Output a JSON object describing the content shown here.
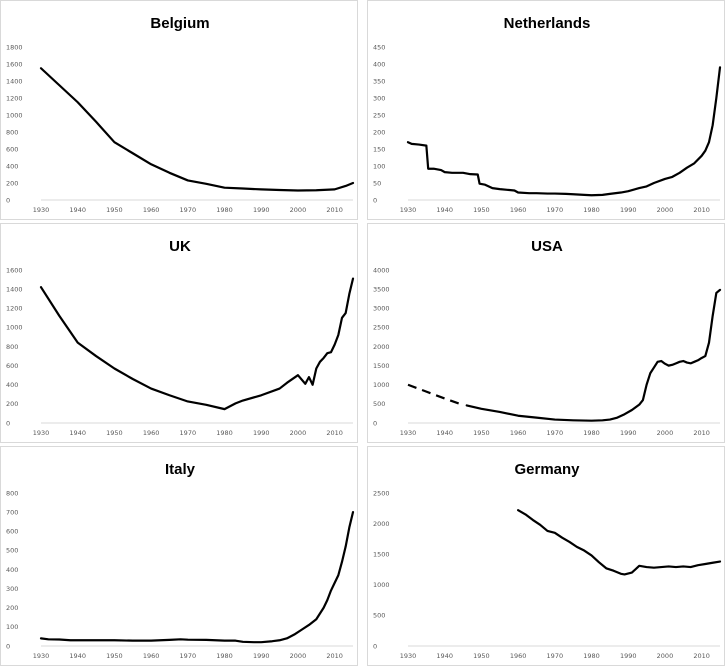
{
  "chart_data": [
    {
      "type": "line",
      "title": "Belgium",
      "xlabel": "",
      "ylabel": "",
      "xlim": [
        1930,
        2015
      ],
      "ylim": [
        0,
        1800
      ],
      "x_ticks": [
        "1930",
        "1940",
        "1950",
        "1960",
        "1970",
        "1980",
        "1990",
        "2000",
        "2010"
      ],
      "y_ticks": [
        "0",
        "200",
        "400",
        "600",
        "800",
        "1000",
        "1200",
        "1400",
        "1600",
        "1800"
      ],
      "grid": false,
      "series": [
        {
          "style": "solid",
          "color": "#000000",
          "points": [
            [
              1930,
              1550
            ],
            [
              1935,
              1350
            ],
            [
              1940,
              1150
            ],
            [
              1945,
              920
            ],
            [
              1950,
              680
            ],
            [
              1955,
              550
            ],
            [
              1960,
              420
            ],
            [
              1965,
              320
            ],
            [
              1970,
              230
            ],
            [
              1975,
              190
            ],
            [
              1980,
              145
            ],
            [
              1985,
              135
            ],
            [
              1990,
              125
            ],
            [
              1995,
              118
            ],
            [
              2000,
              112
            ],
            [
              2005,
              115
            ],
            [
              2010,
              125
            ],
            [
              2013,
              165
            ],
            [
              2015,
              200
            ]
          ]
        }
      ]
    },
    {
      "type": "line",
      "title": "Netherlands",
      "xlabel": "",
      "ylabel": "",
      "xlim": [
        1930,
        2015
      ],
      "ylim": [
        0,
        450
      ],
      "x_ticks": [
        "1930",
        "1940",
        "1950",
        "1960",
        "1970",
        "1980",
        "1990",
        "2000",
        "2010"
      ],
      "y_ticks": [
        "0",
        "50",
        "100",
        "150",
        "200",
        "250",
        "300",
        "350",
        "400",
        "450"
      ],
      "grid": false,
      "series": [
        {
          "style": "solid",
          "color": "#000000",
          "points": [
            [
              1930,
              170
            ],
            [
              1931,
              165
            ],
            [
              1933,
              163
            ],
            [
              1935,
              160
            ],
            [
              1935.5,
              92
            ],
            [
              1937,
              92
            ],
            [
              1939,
              88
            ],
            [
              1940,
              82
            ],
            [
              1942,
              80
            ],
            [
              1945,
              80
            ],
            [
              1947,
              76
            ],
            [
              1949,
              75
            ],
            [
              1949.5,
              48
            ],
            [
              1951,
              45
            ],
            [
              1953,
              35
            ],
            [
              1955,
              32
            ],
            [
              1957,
              30
            ],
            [
              1959,
              28
            ],
            [
              1960,
              22
            ],
            [
              1963,
              20
            ],
            [
              1965,
              20
            ],
            [
              1968,
              19
            ],
            [
              1970,
              19
            ],
            [
              1973,
              18
            ],
            [
              1975,
              17
            ],
            [
              1978,
              15
            ],
            [
              1980,
              14
            ],
            [
              1983,
              15
            ],
            [
              1985,
              18
            ],
            [
              1988,
              22
            ],
            [
              1990,
              26
            ],
            [
              1993,
              35
            ],
            [
              1995,
              40
            ],
            [
              1997,
              50
            ],
            [
              2000,
              62
            ],
            [
              2002,
              68
            ],
            [
              2004,
              80
            ],
            [
              2006,
              95
            ],
            [
              2008,
              108
            ],
            [
              2010,
              130
            ],
            [
              2011,
              145
            ],
            [
              2012,
              170
            ],
            [
              2013,
              220
            ],
            [
              2014,
              300
            ],
            [
              2015,
              390
            ]
          ]
        }
      ]
    },
    {
      "type": "line",
      "title": "UK",
      "xlabel": "",
      "ylabel": "",
      "xlim": [
        1930,
        2015
      ],
      "ylim": [
        0,
        1600
      ],
      "x_ticks": [
        "1930",
        "1940",
        "1950",
        "1960",
        "1970",
        "1980",
        "1990",
        "2000",
        "2010"
      ],
      "y_ticks": [
        "0",
        "200",
        "400",
        "600",
        "800",
        "1000",
        "1200",
        "1400",
        "1600"
      ],
      "grid": false,
      "series": [
        {
          "style": "solid",
          "color": "#000000",
          "points": [
            [
              1930,
              1420
            ],
            [
              1935,
              1120
            ],
            [
              1940,
              840
            ],
            [
              1945,
              700
            ],
            [
              1950,
              570
            ],
            [
              1955,
              460
            ],
            [
              1960,
              360
            ],
            [
              1965,
              290
            ],
            [
              1970,
              225
            ],
            [
              1975,
              190
            ],
            [
              1980,
              145
            ],
            [
              1983,
              205
            ],
            [
              1985,
              235
            ],
            [
              1990,
              290
            ],
            [
              1995,
              360
            ],
            [
              1997,
              420
            ],
            [
              2000,
              500
            ],
            [
              2002,
              410
            ],
            [
              2003,
              480
            ],
            [
              2004,
              400
            ],
            [
              2005,
              570
            ],
            [
              2006,
              640
            ],
            [
              2007,
              680
            ],
            [
              2008,
              730
            ],
            [
              2009,
              740
            ],
            [
              2010,
              820
            ],
            [
              2011,
              920
            ],
            [
              2012,
              1100
            ],
            [
              2013,
              1150
            ],
            [
              2014,
              1350
            ],
            [
              2015,
              1510
            ]
          ]
        }
      ]
    },
    {
      "type": "line",
      "title": "USA",
      "xlabel": "",
      "ylabel": "",
      "xlim": [
        1930,
        2015
      ],
      "ylim": [
        0,
        4000
      ],
      "x_ticks": [
        "1930",
        "1940",
        "1950",
        "1960",
        "1970",
        "1980",
        "1990",
        "2000",
        "2010"
      ],
      "y_ticks": [
        "0",
        "500",
        "1000",
        "1500",
        "2000",
        "2500",
        "3000",
        "3500",
        "4000"
      ],
      "grid": false,
      "series": [
        {
          "style": "dashed",
          "color": "#000000",
          "points": [
            [
              1930,
              1000
            ],
            [
              1935,
              820
            ],
            [
              1940,
              640
            ],
            [
              1945,
              470
            ]
          ]
        },
        {
          "style": "solid",
          "color": "#000000",
          "points": [
            [
              1946,
              460
            ],
            [
              1950,
              370
            ],
            [
              1955,
              290
            ],
            [
              1960,
              190
            ],
            [
              1965,
              140
            ],
            [
              1970,
              90
            ],
            [
              1975,
              70
            ],
            [
              1980,
              60
            ],
            [
              1983,
              70
            ],
            [
              1985,
              90
            ],
            [
              1987,
              140
            ],
            [
              1989,
              230
            ],
            [
              1991,
              340
            ],
            [
              1993,
              480
            ],
            [
              1994,
              600
            ],
            [
              1995,
              1000
            ],
            [
              1996,
              1300
            ],
            [
              1997,
              1450
            ],
            [
              1998,
              1600
            ],
            [
              1999,
              1620
            ],
            [
              2000,
              1550
            ],
            [
              2001,
              1500
            ],
            [
              2002,
              1520
            ],
            [
              2003,
              1560
            ],
            [
              2004,
              1600
            ],
            [
              2005,
              1620
            ],
            [
              2006,
              1580
            ],
            [
              2007,
              1560
            ],
            [
              2008,
              1600
            ],
            [
              2009,
              1640
            ],
            [
              2010,
              1700
            ],
            [
              2011,
              1750
            ],
            [
              2012,
              2100
            ],
            [
              2013,
              2800
            ],
            [
              2014,
              3400
            ],
            [
              2015,
              3480
            ]
          ]
        }
      ]
    },
    {
      "type": "line",
      "title": "Italy",
      "xlabel": "",
      "ylabel": "",
      "xlim": [
        1930,
        2015
      ],
      "ylim": [
        0,
        800
      ],
      "x_ticks": [
        "1930",
        "1940",
        "1950",
        "1960",
        "1970",
        "1980",
        "1990",
        "2000",
        "2010"
      ],
      "y_ticks": [
        "0",
        "100",
        "200",
        "300",
        "400",
        "500",
        "600",
        "700",
        "800"
      ],
      "grid": false,
      "series": [
        {
          "style": "solid",
          "color": "#000000",
          "points": [
            [
              1930,
              40
            ],
            [
              1932,
              35
            ],
            [
              1935,
              34
            ],
            [
              1938,
              30
            ],
            [
              1940,
              30
            ],
            [
              1945,
              30
            ],
            [
              1950,
              30
            ],
            [
              1955,
              28
            ],
            [
              1960,
              28
            ],
            [
              1965,
              32
            ],
            [
              1968,
              35
            ],
            [
              1970,
              33
            ],
            [
              1975,
              32
            ],
            [
              1980,
              28
            ],
            [
              1983,
              28
            ],
            [
              1985,
              22
            ],
            [
              1988,
              20
            ],
            [
              1990,
              20
            ],
            [
              1993,
              25
            ],
            [
              1995,
              30
            ],
            [
              1997,
              40
            ],
            [
              1999,
              60
            ],
            [
              2001,
              85
            ],
            [
              2003,
              110
            ],
            [
              2005,
              140
            ],
            [
              2006,
              170
            ],
            [
              2007,
              200
            ],
            [
              2008,
              240
            ],
            [
              2009,
              290
            ],
            [
              2010,
              330
            ],
            [
              2011,
              370
            ],
            [
              2012,
              440
            ],
            [
              2013,
              520
            ],
            [
              2014,
              620
            ],
            [
              2015,
              700
            ]
          ]
        }
      ]
    },
    {
      "type": "line",
      "title": "Germany",
      "xlabel": "",
      "ylabel": "",
      "xlim": [
        1930,
        2015
      ],
      "ylim": [
        0,
        2500
      ],
      "x_ticks": [
        "1930",
        "1940",
        "1950",
        "1960",
        "1970",
        "1980",
        "1990",
        "2000",
        "2010"
      ],
      "y_ticks": [
        "0",
        "500",
        "1000",
        "1500",
        "2000",
        "2500"
      ],
      "grid": false,
      "series": [
        {
          "style": "solid",
          "color": "#000000",
          "points": [
            [
              1960,
              2220
            ],
            [
              1962,
              2150
            ],
            [
              1964,
              2060
            ],
            [
              1966,
              1980
            ],
            [
              1968,
              1880
            ],
            [
              1970,
              1850
            ],
            [
              1972,
              1770
            ],
            [
              1974,
              1700
            ],
            [
              1976,
              1620
            ],
            [
              1978,
              1560
            ],
            [
              1980,
              1480
            ],
            [
              1982,
              1370
            ],
            [
              1984,
              1270
            ],
            [
              1986,
              1230
            ],
            [
              1988,
              1180
            ],
            [
              1989,
              1170
            ],
            [
              1991,
              1200
            ],
            [
              1993,
              1310
            ],
            [
              1995,
              1290
            ],
            [
              1997,
              1280
            ],
            [
              1999,
              1290
            ],
            [
              2001,
              1300
            ],
            [
              2003,
              1290
            ],
            [
              2005,
              1300
            ],
            [
              2007,
              1290
            ],
            [
              2009,
              1320
            ],
            [
              2011,
              1340
            ],
            [
              2013,
              1360
            ],
            [
              2015,
              1380
            ]
          ]
        }
      ]
    }
  ]
}
